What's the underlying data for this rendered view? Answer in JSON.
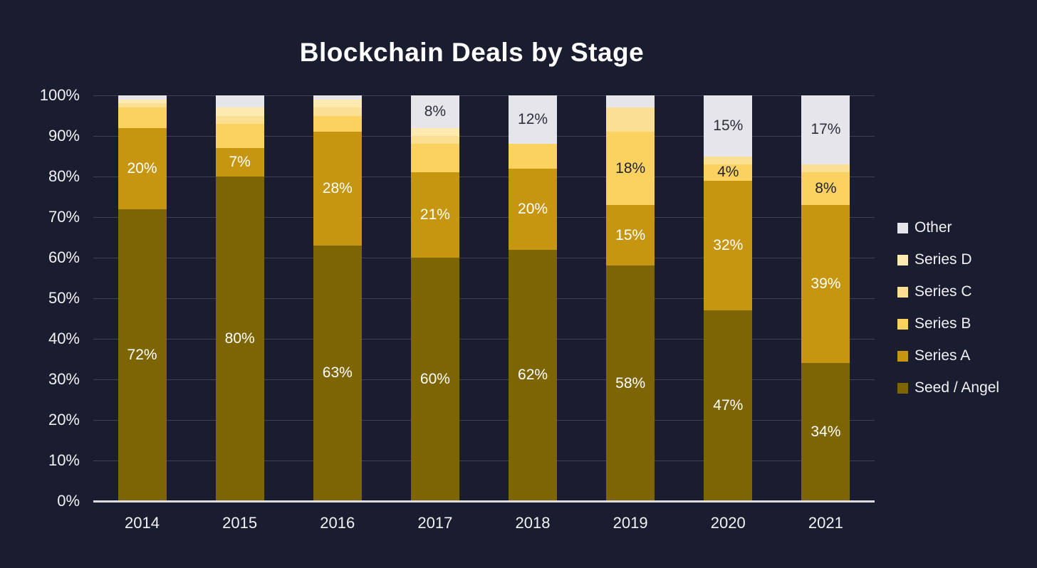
{
  "title": "Blockchain Deals by Stage",
  "colors": {
    "background": "#1a1c2f",
    "axis_text": "#f2f2f5",
    "gridline": "rgba(255,255,255,0.17)",
    "baseline": "#dcdce2"
  },
  "chart_data": {
    "type": "bar",
    "stacked": true,
    "title": "Blockchain Deals by Stage",
    "xlabel": "",
    "ylabel": "",
    "ylim": [
      0,
      100
    ],
    "grid": true,
    "legend_position": "right",
    "categories": [
      "2014",
      "2015",
      "2016",
      "2017",
      "2018",
      "2019",
      "2020",
      "2021"
    ],
    "yticks": [
      "0%",
      "10%",
      "20%",
      "30%",
      "40%",
      "50%",
      "60%",
      "70%",
      "80%",
      "90%",
      "100%"
    ],
    "series": [
      {
        "name": "Seed / Angel",
        "color": "#7e6504",
        "label_color": "#ffffff",
        "values": [
          72,
          80,
          63,
          60,
          62,
          58,
          47,
          34
        ],
        "labels": [
          "72%",
          "80%",
          "63%",
          "60%",
          "62%",
          "58%",
          "47%",
          "34%"
        ]
      },
      {
        "name": "Series A",
        "color": "#c79610",
        "label_color": "#ffffff",
        "values": [
          20,
          7,
          28,
          21,
          20,
          15,
          32,
          39
        ],
        "labels": [
          "20%",
          "7%",
          "28%",
          "21%",
          "20%",
          "15%",
          "32%",
          "39%"
        ]
      },
      {
        "name": "Series B",
        "color": "#fbd160",
        "label_color": "#1f2133",
        "values": [
          5,
          6,
          4,
          7,
          6,
          18,
          4,
          8
        ],
        "labels": [
          null,
          null,
          null,
          null,
          null,
          "18%",
          "4%",
          "8%"
        ]
      },
      {
        "name": "Series C",
        "color": "#fbdf92",
        "label_color": "#1f2133",
        "values": [
          1,
          2,
          2,
          2,
          0,
          6,
          2,
          2
        ],
        "labels": [
          null,
          null,
          null,
          null,
          null,
          null,
          null,
          null
        ]
      },
      {
        "name": "Series D",
        "color": "#fceab0",
        "label_color": "#1f2133",
        "values": [
          1,
          2,
          2,
          2,
          0,
          0,
          0,
          0
        ],
        "labels": [
          null,
          null,
          null,
          null,
          null,
          null,
          null,
          null
        ]
      },
      {
        "name": "Other",
        "color": "#e6e5ea",
        "label_color": "#2c2e3c",
        "values": [
          1,
          3,
          1,
          8,
          12,
          3,
          15,
          17
        ],
        "labels": [
          null,
          null,
          null,
          "8%",
          "12%",
          null,
          "15%",
          "17%"
        ]
      }
    ],
    "legend": [
      "Other",
      "Series D",
      "Series C",
      "Series B",
      "Series A",
      "Seed / Angel"
    ]
  }
}
